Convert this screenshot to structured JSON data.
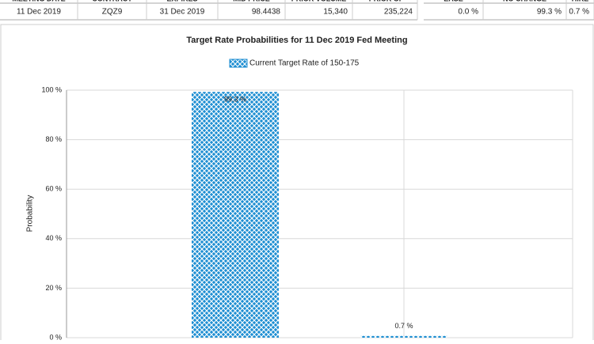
{
  "table": {
    "headers": [
      "MEETING DATE",
      "CONTRACT",
      "EXPIRES",
      "MID PRICE",
      "PRIOR VOLUME",
      "PRIOR OI",
      "EASE",
      "NO CHANGE",
      "HIKE"
    ],
    "rows": [
      [
        "11 Dec 2019",
        "ZQZ9",
        "31 Dec 2019",
        "98.4438",
        "15,340",
        "235,224",
        "0.0 %",
        "99.3 %",
        "0.7 %"
      ]
    ]
  },
  "chart_data": {
    "type": "bar",
    "title": "Target Rate Probabilities for 11 Dec 2019 Fed Meeting",
    "y_label": "Probability",
    "categories": [
      null,
      null
    ],
    "series": [
      {
        "name": "Current Target Rate of 150-175",
        "color": "#1e8ed2",
        "values": [
          99.3,
          0.7
        ],
        "value_labels": [
          "99.3 %",
          "0.7 %"
        ]
      }
    ],
    "ylim": [
      0,
      100
    ],
    "yticks": [
      {
        "value": 0,
        "label": "0 %"
      },
      {
        "value": 20,
        "label": "20 %"
      },
      {
        "value": 40,
        "label": "40 %"
      },
      {
        "value": 60,
        "label": "60 %"
      },
      {
        "value": 80,
        "label": "80 %"
      },
      {
        "value": 100,
        "label": "100 %"
      }
    ],
    "grid": true
  }
}
